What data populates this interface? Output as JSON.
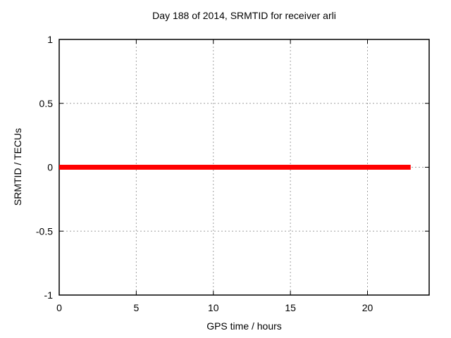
{
  "chart_data": {
    "type": "line",
    "title": "Day 188 of 2014, SRMTID for receiver arli",
    "xlabel": "GPS time / hours",
    "ylabel": "SRMTID / TECUs",
    "xlim": [
      0,
      24
    ],
    "ylim": [
      -1,
      1
    ],
    "xticks": [
      0,
      5,
      10,
      15,
      20
    ],
    "xtick_labels": [
      "0",
      "5",
      "10",
      "15",
      "20"
    ],
    "yticks": [
      -1,
      -0.5,
      0,
      0.5,
      1
    ],
    "ytick_labels": [
      "-1",
      "-0.5",
      "0",
      "0.5",
      "1"
    ],
    "grid": true,
    "grid_color": "#a0a0a0",
    "axis_color": "#000000",
    "background": "#ffffff",
    "series": [
      {
        "name": "srmtid",
        "color": "#ff0000",
        "line_width": 7,
        "x": [
          0,
          22.8
        ],
        "y": [
          0,
          0
        ]
      }
    ]
  }
}
